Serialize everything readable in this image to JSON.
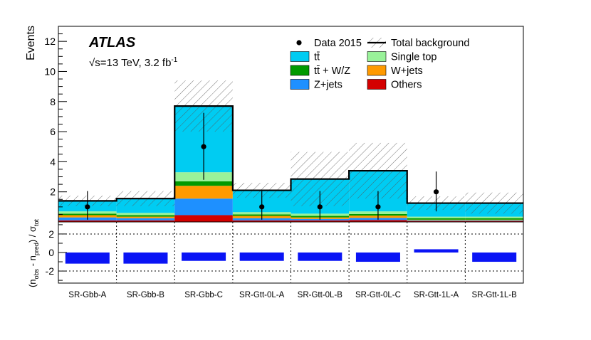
{
  "chart_data": {
    "type": "bar",
    "subtype": "stacked-histogram-with-ratio",
    "experiment": "ATLAS",
    "energy_label": "√s=13 TeV, 3.2 fb",
    "lumi_superscript": "-1",
    "ylabel": "Events",
    "ratio_ylabel": "(n_obs - n_pred) / σ_tot",
    "ylim": [
      0,
      13
    ],
    "yticks": [
      2,
      4,
      6,
      8,
      10,
      12
    ],
    "ratio_ylim": [
      -3.3,
      3.3
    ],
    "ratio_yticks": [
      -2,
      0,
      2
    ],
    "ratio_gridlines": [
      -2,
      2
    ],
    "categories": [
      "SR-Gbb-A",
      "SR-Gbb-B",
      "SR-Gbb-C",
      "SR-Gtt-0L-A",
      "SR-Gtt-0L-B",
      "SR-Gtt-0L-C",
      "SR-Gtt-1L-A",
      "SR-Gtt-1L-B"
    ],
    "series": [
      {
        "name": "Others",
        "color": "#d40000",
        "values": [
          0.1,
          0.1,
          0.45,
          0.1,
          0.1,
          0.12,
          0.05,
          0.05
        ]
      },
      {
        "name": "Z+jets",
        "color": "#1e90ff",
        "values": [
          0.2,
          0.15,
          1.1,
          0.15,
          0.1,
          0.15,
          0.05,
          0.05
        ]
      },
      {
        "name": "W+jets",
        "color": "#ff9a00",
        "values": [
          0.15,
          0.1,
          0.85,
          0.15,
          0.1,
          0.15,
          0.05,
          0.05
        ]
      },
      {
        "name": "tt̄ + W/Z",
        "color": "#009a00",
        "values": [
          0.1,
          0.1,
          0.3,
          0.1,
          0.1,
          0.1,
          0.1,
          0.1
        ]
      },
      {
        "name": "Single top",
        "color": "#99f299",
        "values": [
          0.15,
          0.15,
          0.6,
          0.15,
          0.15,
          0.18,
          0.1,
          0.1
        ]
      },
      {
        "name": "tt̄",
        "color": "#00ccf2",
        "values": [
          0.7,
          0.95,
          4.4,
          1.45,
          2.3,
          2.7,
          0.9,
          0.9
        ]
      }
    ],
    "total_background": [
      1.4,
      1.55,
      7.7,
      2.1,
      2.85,
      3.4,
      1.25,
      1.25
    ],
    "background_uncertainty": [
      0.35,
      0.5,
      1.7,
      0.5,
      1.8,
      1.85,
      0.45,
      0.7
    ],
    "data": {
      "name": "Data 2015",
      "values": [
        1,
        null,
        5,
        1,
        1,
        1,
        2,
        null
      ],
      "err_low": [
        0.85,
        null,
        2.2,
        0.85,
        0.85,
        0.85,
        1.3,
        null
      ],
      "err_high": [
        1.05,
        null,
        2.25,
        1.05,
        1.05,
        1.05,
        1.35,
        null
      ]
    },
    "ratio_values": [
      -1.2,
      -1.2,
      -0.9,
      -0.9,
      -0.9,
      -1.0,
      0.35,
      -1.0
    ],
    "legend": [
      {
        "label": "Data 2015",
        "kind": "marker"
      },
      {
        "label": "Total background",
        "kind": "line-hatch"
      },
      {
        "label": "tt̄",
        "kind": "fill",
        "color": "#00ccf2"
      },
      {
        "label": "Single top",
        "kind": "fill",
        "color": "#99f299"
      },
      {
        "label": "tt̄ + W/Z",
        "kind": "fill",
        "color": "#009a00"
      },
      {
        "label": "W+jets",
        "kind": "fill",
        "color": "#ff9a00"
      },
      {
        "label": "Z+jets",
        "kind": "fill",
        "color": "#1e90ff"
      },
      {
        "label": "Others",
        "kind": "fill",
        "color": "#d40000"
      }
    ],
    "ratio_bar_color": "#0a14f5",
    "legend_position": "top-right"
  }
}
